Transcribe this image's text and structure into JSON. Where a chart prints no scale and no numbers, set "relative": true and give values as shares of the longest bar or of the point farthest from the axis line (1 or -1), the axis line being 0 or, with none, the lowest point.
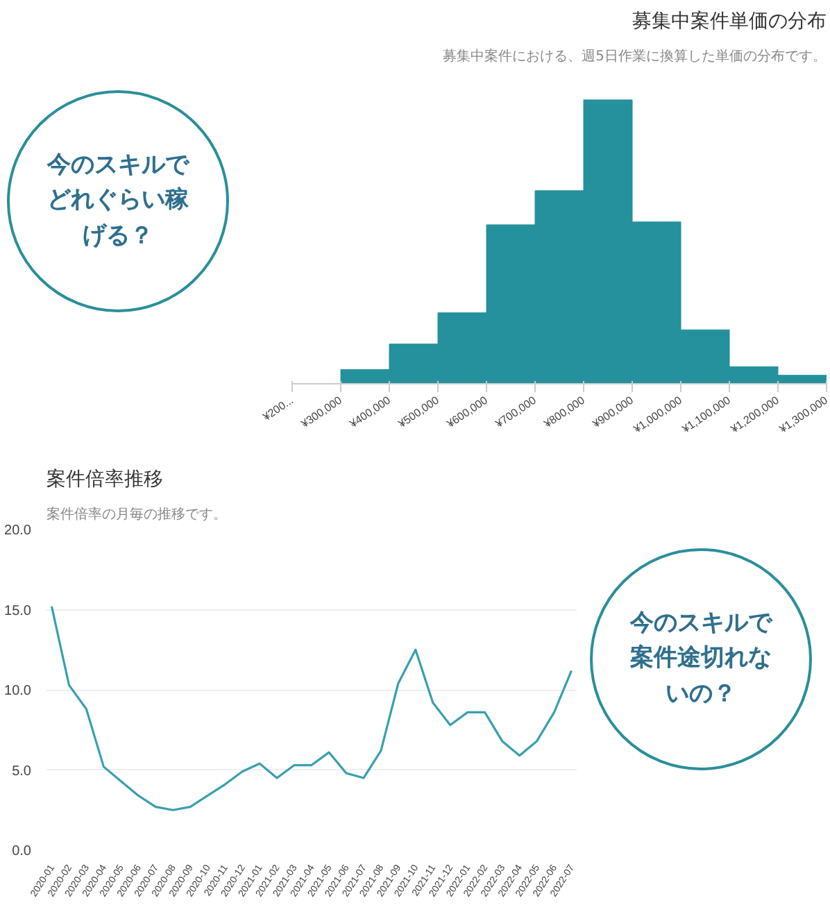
{
  "chart_data": [
    {
      "type": "bar",
      "annotations": [
        "今のスキルでどれぐらい稼げる？"
      ],
      "title": "募集中案件単価の分布",
      "subtitle": "募集中案件における、週5日作業に換算した単価の分布です。",
      "relative": true,
      "color": "#25919c",
      "x": [
        250000,
        350000,
        450000,
        550000,
        650000,
        750000,
        850000,
        950000,
        1050000,
        1150000,
        1250000
      ],
      "values": [
        0,
        0.05,
        0.14,
        0.25,
        0.56,
        0.68,
        1.0,
        0.57,
        0.19,
        0.06,
        0.03
      ],
      "xlim": [
        200000,
        1300000
      ],
      "xticks": [
        {
          "value": 200000,
          "label": "¥200..."
        },
        {
          "value": 300000,
          "label": "¥300,000"
        },
        {
          "value": 400000,
          "label": "¥400,000"
        },
        {
          "value": 500000,
          "label": "¥500,000"
        },
        {
          "value": 600000,
          "label": "¥600,000"
        },
        {
          "value": 700000,
          "label": "¥700,000"
        },
        {
          "value": 800000,
          "label": "¥800,000"
        },
        {
          "value": 900000,
          "label": "¥900,000"
        },
        {
          "value": 1000000,
          "label": "¥1,000,000"
        },
        {
          "value": 1100000,
          "label": "¥1,100,000"
        },
        {
          "value": 1200000,
          "label": "¥1,200,000"
        },
        {
          "value": 1300000,
          "label": "¥1,300,000"
        }
      ]
    },
    {
      "type": "line",
      "annotations": [
        "今のスキルで案件途切れないの？"
      ],
      "title": "案件倍率推移",
      "subtitle": "案件倍率の月毎の推移です。",
      "color": "#3a9fb0",
      "grid": "y",
      "categories": [
        "2020-01",
        "2020-02",
        "2020-03",
        "2020-04",
        "2020-05",
        "2020-06",
        "2020-07",
        "2020-08",
        "2020-09",
        "2020-10",
        "2020-11",
        "2020-12",
        "2021-01",
        "2021-02",
        "2021-03",
        "2021-04",
        "2021-05",
        "2021-06",
        "2021-07",
        "2021-08",
        "2021-09",
        "2021-10",
        "2021-11",
        "2021-12",
        "2022-01",
        "2022-02",
        "2022-03",
        "2022-04",
        "2022-05",
        "2022-06",
        "2022-07"
      ],
      "values": [
        15.2,
        10.3,
        8.8,
        5.2,
        4.3,
        3.4,
        2.7,
        2.5,
        2.7,
        3.4,
        4.1,
        4.9,
        5.4,
        4.5,
        5.3,
        5.3,
        6.1,
        4.8,
        4.5,
        6.2,
        10.4,
        12.5,
        9.2,
        7.8,
        8.6,
        8.6,
        6.8,
        5.9,
        6.8,
        8.6,
        11.2
      ],
      "ylim": [
        0,
        20
      ],
      "yticks": [
        {
          "value": 0,
          "label": "0.0"
        },
        {
          "value": 5,
          "label": "5.0"
        },
        {
          "value": 10,
          "label": "10.0"
        },
        {
          "value": 15,
          "label": "15.0"
        },
        {
          "value": 20,
          "label": "20.0"
        }
      ]
    }
  ]
}
